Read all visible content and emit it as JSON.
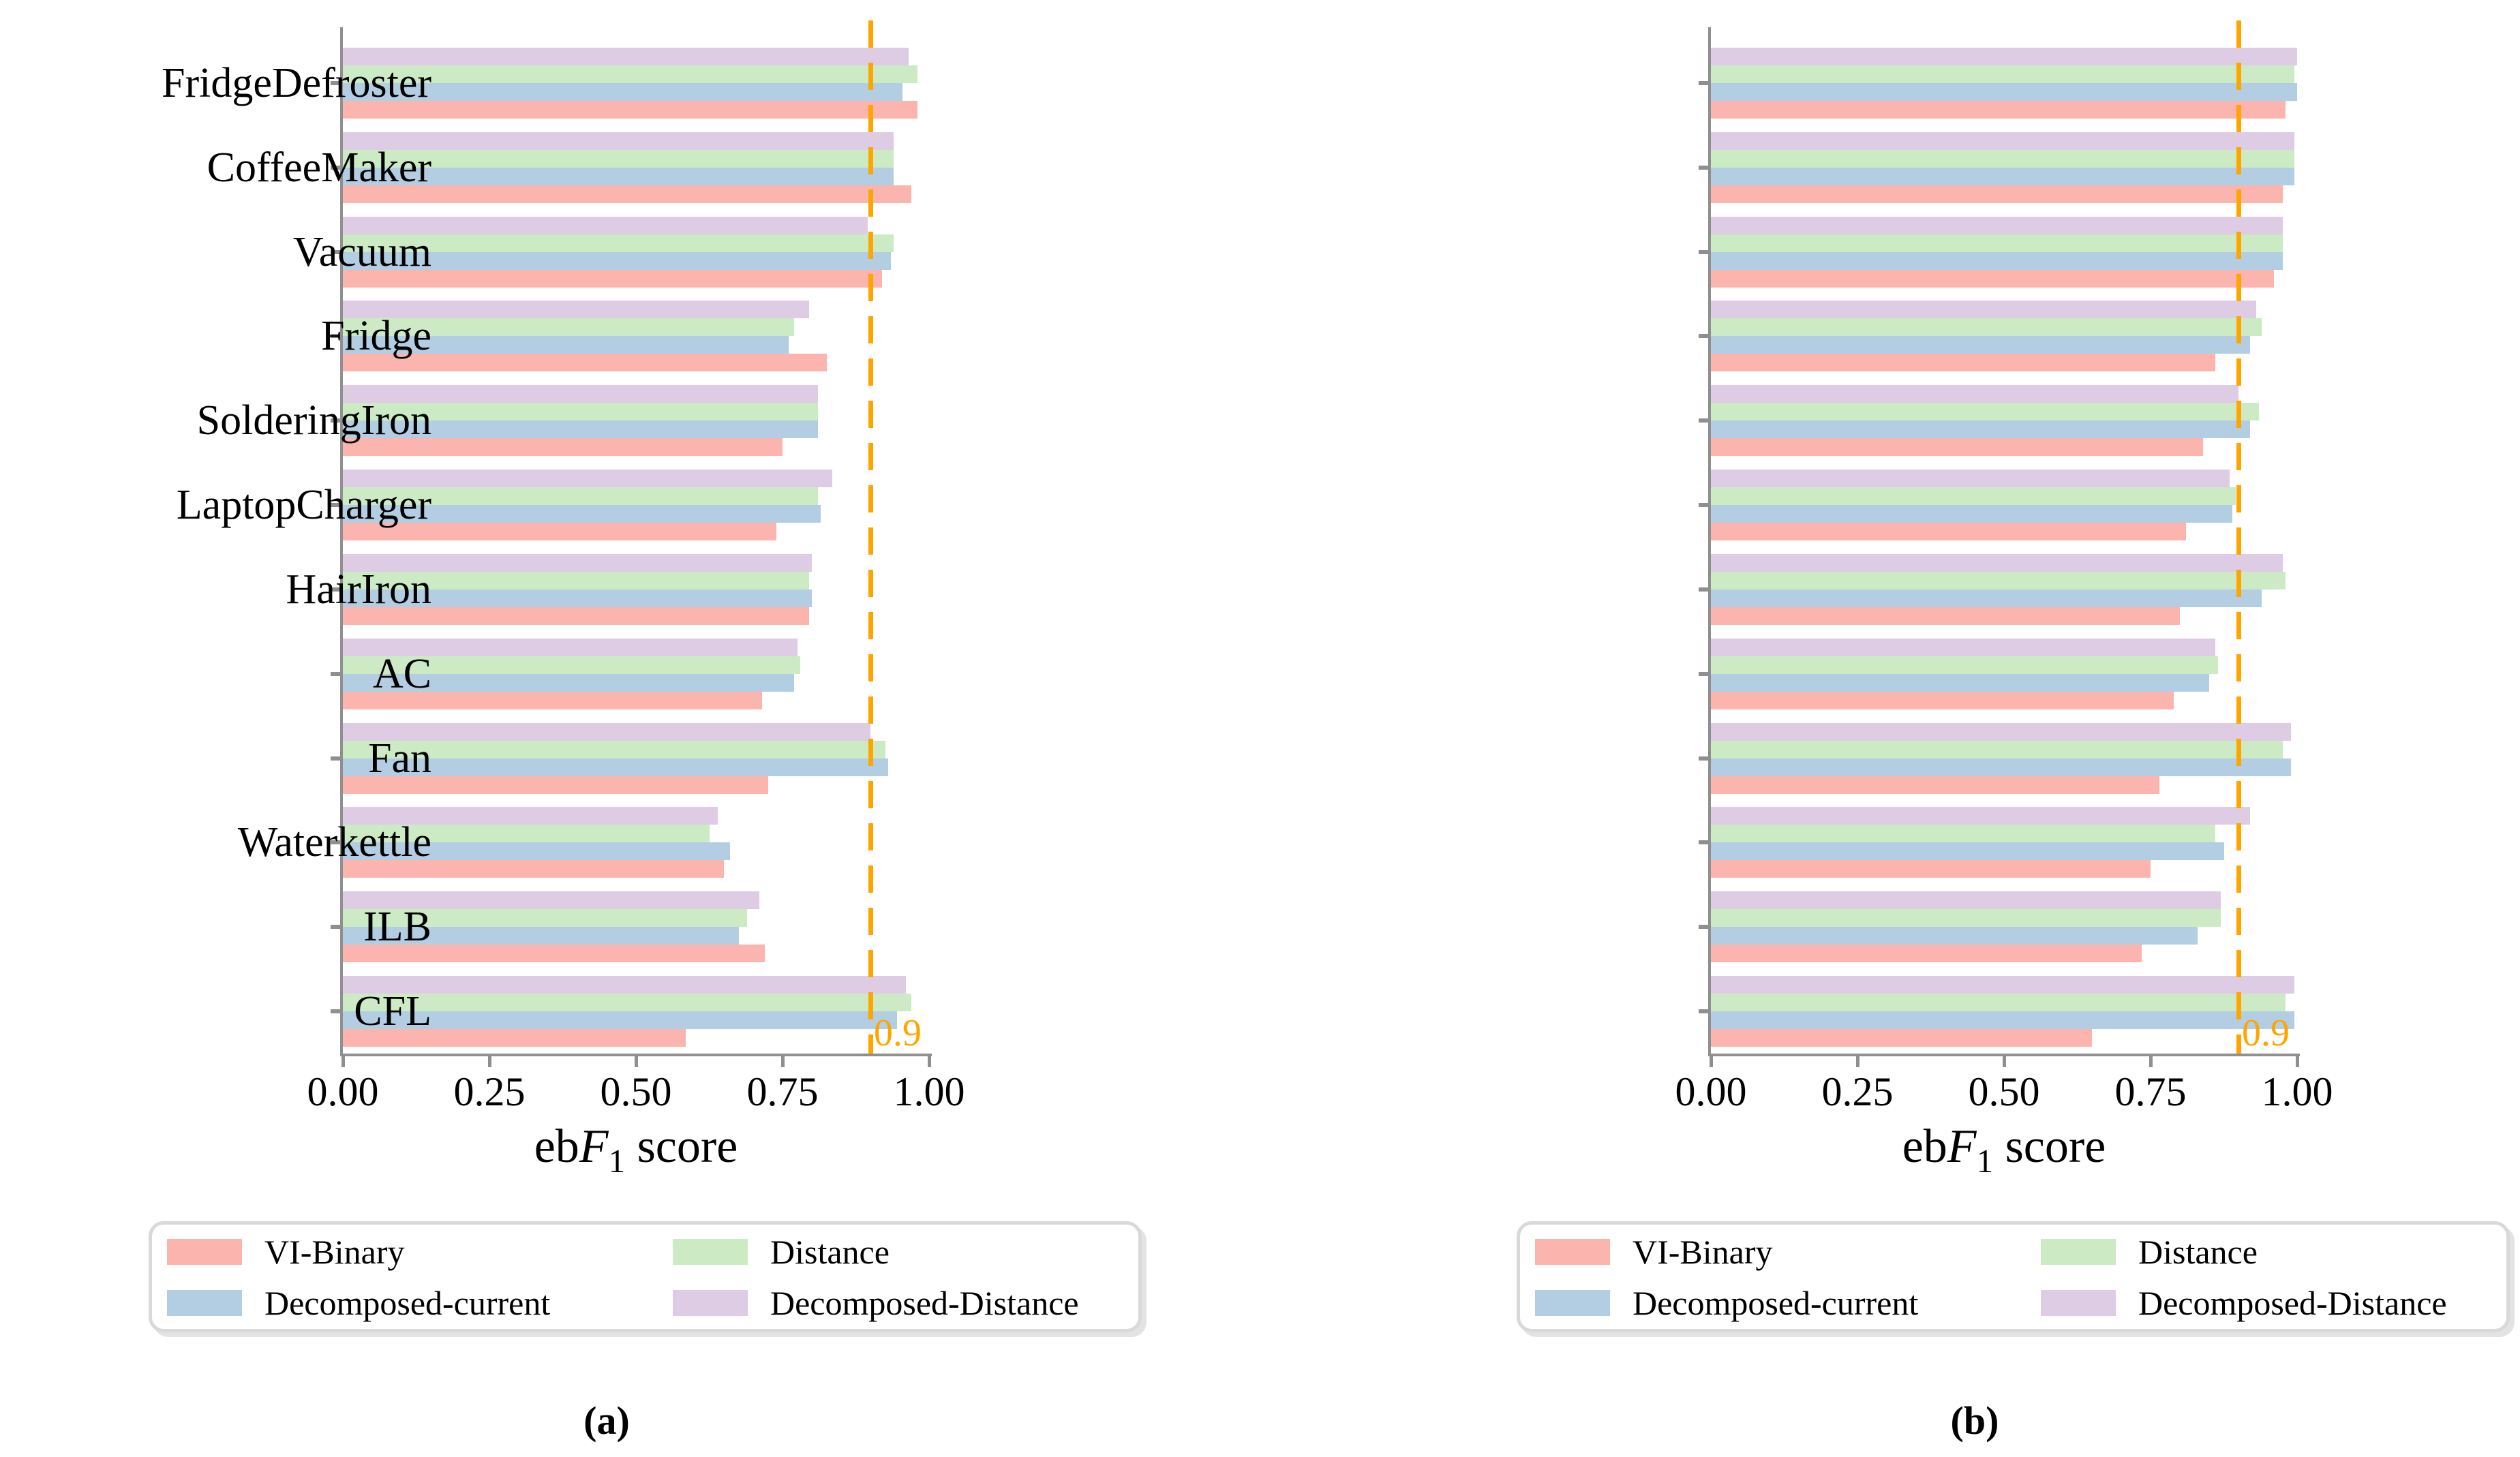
{
  "figure": {
    "xlabel": {
      "prefix": "eb",
      "italic": "F",
      "subscript": "1",
      "suffix": " score"
    },
    "axis_color": "#8f8f8f",
    "background": "#ffffff"
  },
  "axis": {
    "tick_labels": [
      "0.00",
      "0.25",
      "0.50",
      "0.75",
      "1.00"
    ],
    "tick_values": [
      0,
      0.25,
      0.5,
      0.75,
      1.0
    ]
  },
  "threshold": {
    "value": 0.9,
    "label": "0.9",
    "color": "#FFA500",
    "style": "dashed"
  },
  "legend": {
    "items": [
      {
        "label": "VI-Binary",
        "color": "#FBB4AE"
      },
      {
        "label": "Decomposed-current",
        "color": "#B3CDE3"
      },
      {
        "label": "Distance",
        "color": "#CCEBC5"
      },
      {
        "label": "Decomposed-Distance",
        "color": "#DECBE4"
      }
    ]
  },
  "captions": {
    "a": "(a)",
    "b": "(b)"
  },
  "chart_data": [
    {
      "type": "bar",
      "orientation": "horizontal",
      "panel": "a",
      "caption": "(a)",
      "xlabel": "ebF1 score",
      "xlim": [
        0,
        1
      ],
      "xticks": [
        0,
        0.25,
        0.5,
        0.75,
        1.0
      ],
      "grid": false,
      "legend_position": "below",
      "threshold_line": {
        "value": 0.9,
        "label": "0.9",
        "color": "#FFA500",
        "style": "dashed"
      },
      "categories": [
        "FridgeDefroster",
        "CoffeeMaker",
        "Vacuum",
        "Fridge",
        "SolderingIron",
        "LaptopCharger",
        "HairIron",
        "AC",
        "Fan",
        "Waterkettle",
        "ILB",
        "CFL"
      ],
      "series": [
        {
          "name": "VI-Binary",
          "color": "#FBB4AE",
          "values": [
            0.98,
            0.97,
            0.92,
            0.825,
            0.75,
            0.74,
            0.795,
            0.715,
            0.725,
            0.65,
            0.72,
            0.585
          ]
        },
        {
          "name": "Decomposed-current",
          "color": "#B3CDE3",
          "values": [
            0.955,
            0.94,
            0.935,
            0.76,
            0.81,
            0.815,
            0.8,
            0.77,
            0.93,
            0.66,
            0.675,
            0.945
          ]
        },
        {
          "name": "Distance",
          "color": "#CCEBC5",
          "values": [
            0.98,
            0.94,
            0.94,
            0.77,
            0.81,
            0.81,
            0.795,
            0.78,
            0.925,
            0.625,
            0.69,
            0.97
          ]
        },
        {
          "name": "Decomposed-Distance",
          "color": "#DECBE4",
          "values": [
            0.965,
            0.94,
            0.895,
            0.795,
            0.81,
            0.835,
            0.8,
            0.775,
            0.9,
            0.64,
            0.71,
            0.96
          ]
        }
      ]
    },
    {
      "type": "bar",
      "orientation": "horizontal",
      "panel": "b",
      "caption": "(b)",
      "xlabel": "ebF1 score",
      "xlim": [
        0,
        1
      ],
      "xticks": [
        0,
        0.25,
        0.5,
        0.75,
        1.0
      ],
      "grid": false,
      "legend_position": "below",
      "threshold_line": {
        "value": 0.9,
        "label": "0.9",
        "color": "#FFA500",
        "style": "dashed"
      },
      "categories": [
        "FridgeDefroster",
        "CoffeeMaker",
        "Vacuum",
        "Fridge",
        "SolderingIron",
        "LaptopCharger",
        "HairIron",
        "AC",
        "Fan",
        "Waterkettle",
        "ILB",
        "CFL"
      ],
      "series": [
        {
          "name": "VI-Binary",
          "color": "#FBB4AE",
          "values": [
            0.98,
            0.975,
            0.96,
            0.86,
            0.84,
            0.81,
            0.8,
            0.79,
            0.765,
            0.75,
            0.735,
            0.65
          ]
        },
        {
          "name": "Decomposed-current",
          "color": "#B3CDE3",
          "values": [
            1.0,
            0.995,
            0.975,
            0.92,
            0.92,
            0.89,
            0.94,
            0.85,
            0.99,
            0.875,
            0.83,
            0.995
          ]
        },
        {
          "name": "Distance",
          "color": "#CCEBC5",
          "values": [
            0.995,
            0.995,
            0.975,
            0.94,
            0.935,
            0.895,
            0.98,
            0.865,
            0.975,
            0.86,
            0.87,
            0.98
          ]
        },
        {
          "name": "Decomposed-Distance",
          "color": "#DECBE4",
          "values": [
            1.0,
            0.995,
            0.975,
            0.93,
            0.9,
            0.885,
            0.975,
            0.86,
            0.99,
            0.92,
            0.87,
            0.995
          ]
        }
      ]
    }
  ]
}
